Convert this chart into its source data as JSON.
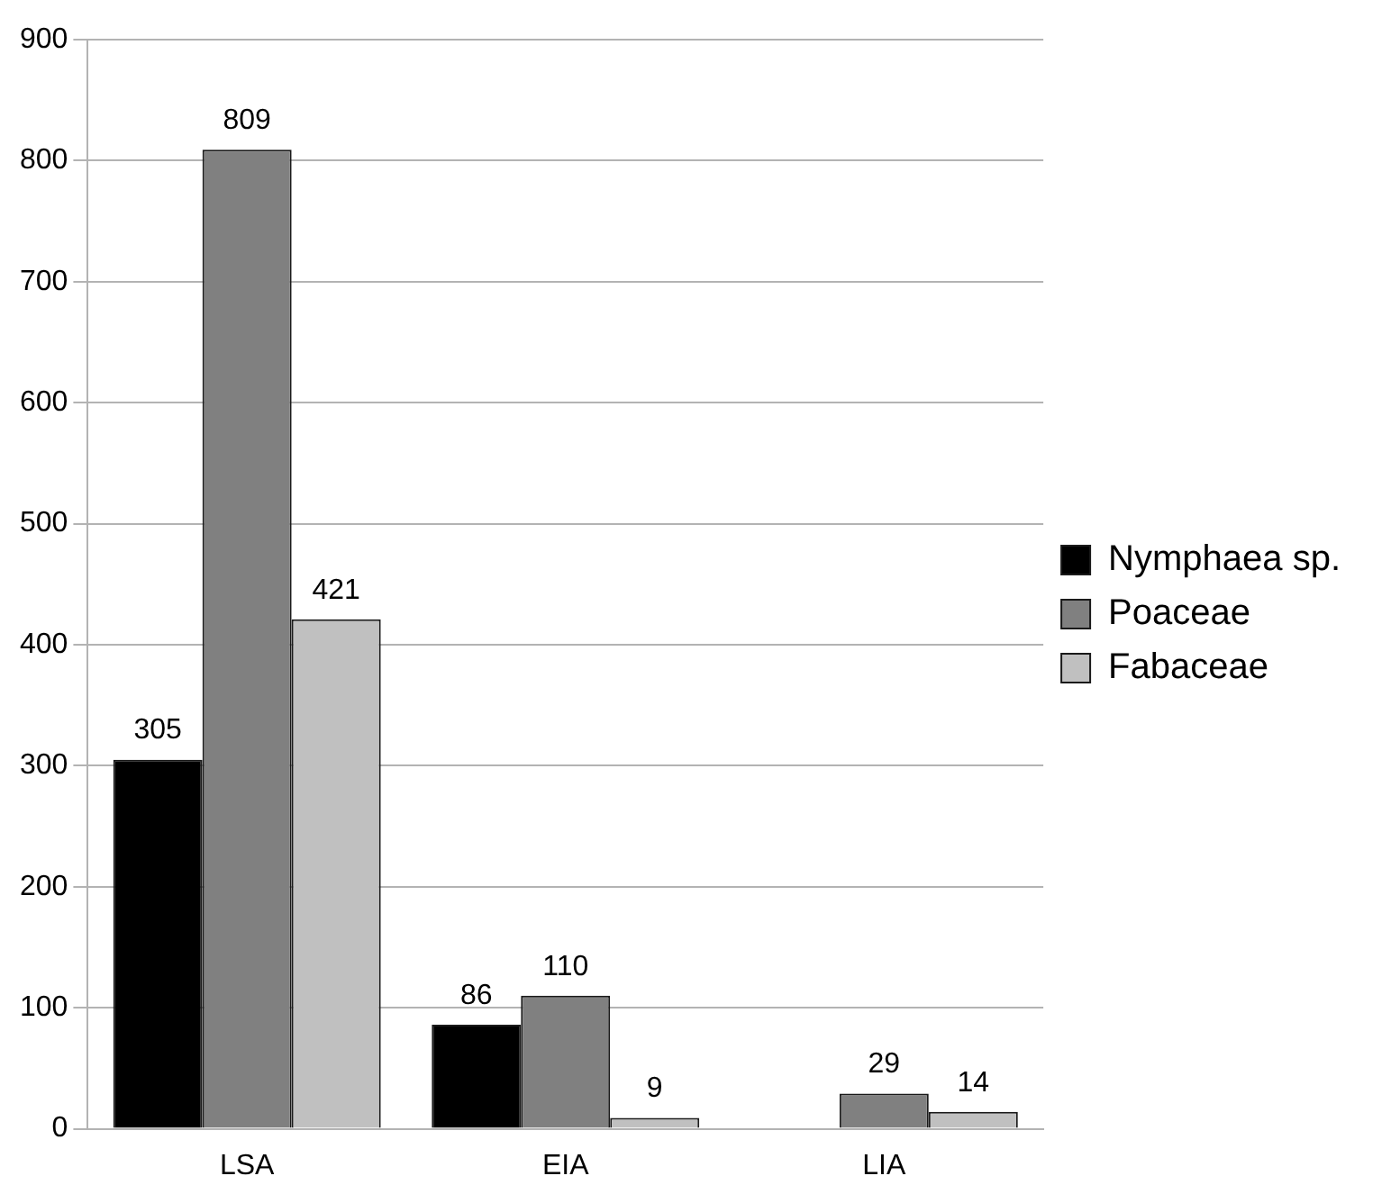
{
  "chart_data": {
    "type": "bar",
    "categories": [
      "LSA",
      "EIA",
      "LIA"
    ],
    "series": [
      {
        "name": "Nymphaea sp.",
        "color": "#000000",
        "values": [
          305,
          86,
          null
        ]
      },
      {
        "name": "Poaceae",
        "color": "#808080",
        "values": [
          809,
          110,
          29
        ]
      },
      {
        "name": "Fabaceae",
        "color": "#c0c0c0",
        "values": [
          421,
          9,
          14
        ]
      }
    ],
    "ylim": [
      0,
      900
    ],
    "yticks": [
      0,
      100,
      200,
      300,
      400,
      500,
      600,
      700,
      800,
      900
    ],
    "grid": "y",
    "legend": "right",
    "data_labels": true
  }
}
